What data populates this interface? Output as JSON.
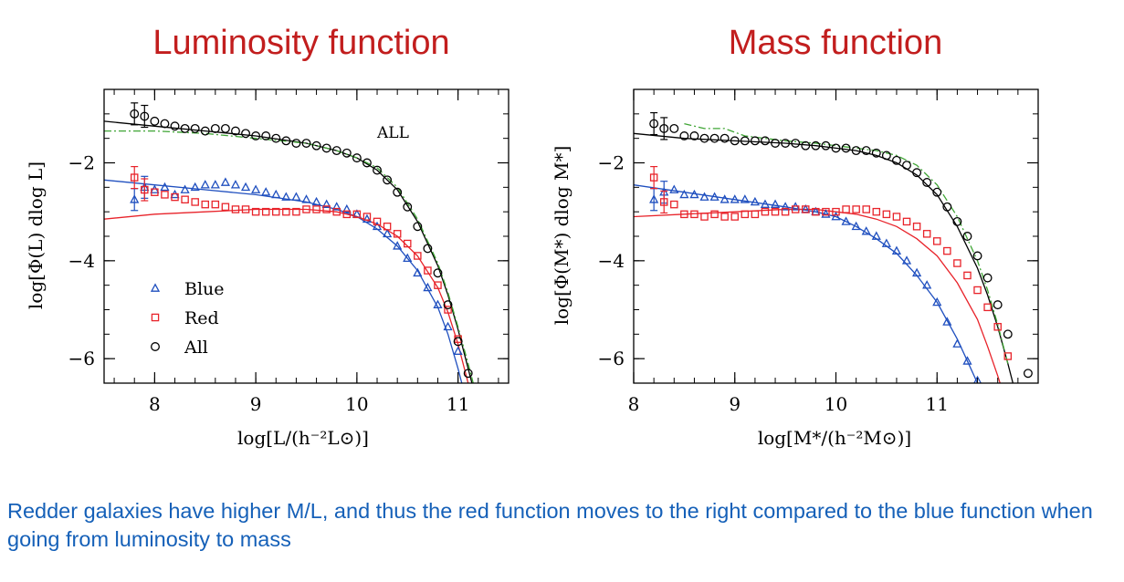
{
  "titles": {
    "left": "Luminosity function",
    "right": "Mass function"
  },
  "caption": "Redder galaxies have higher M/L, and thus the red function moves to the right compared to the blue function when going from luminosity to mass",
  "colors": {
    "title": "#c21e1e",
    "caption": "#1560b8",
    "blue": "#1f4fbf",
    "red": "#e8232a",
    "all": "#000000",
    "green": "#3fa535"
  },
  "chart_data": [
    {
      "type": "scatter",
      "title": "Luminosity function",
      "xlabel": "log[L/(h⁻²L⊙)]",
      "ylabel": "log[Φ(L) dlog L]",
      "annotation": "ALL",
      "xlim": [
        7.5,
        11.5
      ],
      "ylim": [
        -6.5,
        -0.5
      ],
      "xticks": [
        8,
        9,
        10,
        11
      ],
      "yticks": [
        -2,
        -4,
        -6
      ],
      "legend": {
        "placement": "bottom-left",
        "entries": [
          "Blue",
          "Red",
          "All"
        ]
      },
      "series": [
        {
          "name": "Blue",
          "marker": "triangle",
          "color": "#1f4fbf",
          "x": [
            7.8,
            7.9,
            8.0,
            8.1,
            8.2,
            8.3,
            8.4,
            8.5,
            8.6,
            8.7,
            8.8,
            8.9,
            9.0,
            9.1,
            9.2,
            9.3,
            9.4,
            9.5,
            9.6,
            9.7,
            9.8,
            9.9,
            10.0,
            10.1,
            10.2,
            10.3,
            10.4,
            10.5,
            10.6,
            10.7,
            10.8,
            10.9,
            11.0
          ],
          "y": [
            -2.75,
            -2.5,
            -2.55,
            -2.5,
            -2.65,
            -2.55,
            -2.5,
            -2.45,
            -2.45,
            -2.4,
            -2.45,
            -2.5,
            -2.55,
            -2.6,
            -2.65,
            -2.7,
            -2.7,
            -2.75,
            -2.8,
            -2.85,
            -2.9,
            -2.95,
            -3.05,
            -3.15,
            -3.3,
            -3.45,
            -3.7,
            -3.95,
            -4.25,
            -4.55,
            -4.9,
            -5.35,
            -5.85
          ]
        },
        {
          "name": "Red",
          "marker": "square",
          "color": "#e8232a",
          "x": [
            7.8,
            7.9,
            8.0,
            8.1,
            8.2,
            8.3,
            8.4,
            8.5,
            8.6,
            8.7,
            8.8,
            8.9,
            9.0,
            9.1,
            9.2,
            9.3,
            9.4,
            9.5,
            9.6,
            9.7,
            9.8,
            9.9,
            10.0,
            10.1,
            10.2,
            10.3,
            10.4,
            10.5,
            10.6,
            10.7,
            10.8,
            10.9,
            11.0
          ],
          "y": [
            -2.3,
            -2.55,
            -2.6,
            -2.65,
            -2.7,
            -2.75,
            -2.8,
            -2.85,
            -2.85,
            -2.9,
            -2.95,
            -2.95,
            -3.0,
            -3.0,
            -3.0,
            -3.0,
            -3.0,
            -2.95,
            -2.95,
            -2.95,
            -3.0,
            -3.05,
            -3.05,
            -3.1,
            -3.2,
            -3.3,
            -3.45,
            -3.65,
            -3.9,
            -4.2,
            -4.5,
            -5.0,
            -5.6
          ]
        },
        {
          "name": "All",
          "marker": "circle",
          "color": "#000000",
          "x": [
            7.8,
            7.9,
            8.0,
            8.1,
            8.2,
            8.3,
            8.4,
            8.5,
            8.6,
            8.7,
            8.8,
            8.9,
            9.0,
            9.1,
            9.2,
            9.3,
            9.4,
            9.5,
            9.6,
            9.7,
            9.8,
            9.9,
            10.0,
            10.1,
            10.2,
            10.3,
            10.4,
            10.5,
            10.6,
            10.7,
            10.8,
            10.9,
            11.0,
            11.1
          ],
          "y": [
            -1.0,
            -1.05,
            -1.15,
            -1.2,
            -1.25,
            -1.3,
            -1.3,
            -1.35,
            -1.3,
            -1.3,
            -1.35,
            -1.4,
            -1.45,
            -1.45,
            -1.5,
            -1.55,
            -1.6,
            -1.6,
            -1.65,
            -1.7,
            -1.75,
            -1.8,
            -1.9,
            -2.0,
            -2.15,
            -2.35,
            -2.6,
            -2.9,
            -3.3,
            -3.75,
            -4.25,
            -4.9,
            -5.65,
            -6.3
          ]
        }
      ],
      "fits": [
        {
          "color": "#1f4fbf",
          "x": [
            7.5,
            8.0,
            8.5,
            9.0,
            9.5,
            9.8,
            10.0,
            10.2,
            10.4,
            10.6,
            10.8,
            10.9,
            11.0,
            11.1
          ],
          "y": [
            -2.35,
            -2.45,
            -2.55,
            -2.65,
            -2.8,
            -2.95,
            -3.1,
            -3.35,
            -3.7,
            -4.2,
            -4.95,
            -5.5,
            -6.2,
            -7.0
          ]
        },
        {
          "color": "#e8232a",
          "x": [
            7.5,
            8.0,
            8.5,
            9.0,
            9.5,
            9.8,
            10.0,
            10.2,
            10.4,
            10.6,
            10.8,
            10.9,
            11.0,
            11.1
          ],
          "y": [
            -3.15,
            -3.05,
            -3.0,
            -2.95,
            -2.95,
            -3.0,
            -3.1,
            -3.25,
            -3.5,
            -3.9,
            -4.55,
            -5.05,
            -5.7,
            -6.5
          ]
        },
        {
          "color": "#000000",
          "x": [
            7.5,
            8.0,
            8.5,
            9.0,
            9.5,
            9.8,
            10.0,
            10.2,
            10.4,
            10.6,
            10.8,
            10.9,
            11.0,
            11.1,
            11.2
          ],
          "y": [
            -1.15,
            -1.25,
            -1.35,
            -1.45,
            -1.6,
            -1.75,
            -1.9,
            -2.15,
            -2.55,
            -3.2,
            -4.1,
            -4.7,
            -5.4,
            -6.2,
            -7.0
          ]
        },
        {
          "color": "#3fa535",
          "dashed": true,
          "x": [
            7.5,
            8.0,
            8.5,
            9.0,
            9.5,
            9.8,
            10.0,
            10.2,
            10.4,
            10.6,
            10.8,
            10.9,
            11.0,
            11.1,
            11.2
          ],
          "y": [
            -1.35,
            -1.35,
            -1.4,
            -1.5,
            -1.6,
            -1.75,
            -1.9,
            -2.1,
            -2.5,
            -3.15,
            -4.05,
            -4.65,
            -5.35,
            -6.1,
            -6.9
          ]
        }
      ]
    },
    {
      "type": "scatter",
      "title": "Mass function",
      "xlabel": "log[M*/(h⁻²M⊙)]",
      "ylabel": "log[Φ(M*) dlog M*]",
      "xlim": [
        8.0,
        12.0
      ],
      "ylim": [
        -6.5,
        -0.5
      ],
      "xticks": [
        8,
        9,
        10,
        11
      ],
      "yticks": [
        -2,
        -4,
        -6
      ],
      "series": [
        {
          "name": "Blue",
          "marker": "triangle",
          "color": "#1f4fbf",
          "x": [
            8.2,
            8.3,
            8.4,
            8.5,
            8.6,
            8.7,
            8.8,
            8.9,
            9.0,
            9.1,
            9.2,
            9.3,
            9.4,
            9.5,
            9.6,
            9.7,
            9.8,
            9.9,
            10.0,
            10.1,
            10.2,
            10.3,
            10.4,
            10.5,
            10.6,
            10.7,
            10.8,
            10.9,
            11.0,
            11.1,
            11.2,
            11.3,
            11.4,
            11.5
          ],
          "y": [
            -2.75,
            -2.6,
            -2.55,
            -2.65,
            -2.65,
            -2.7,
            -2.7,
            -2.75,
            -2.75,
            -2.75,
            -2.8,
            -2.85,
            -2.85,
            -2.9,
            -2.9,
            -2.95,
            -3.0,
            -3.05,
            -3.1,
            -3.2,
            -3.3,
            -3.4,
            -3.5,
            -3.65,
            -3.8,
            -4.0,
            -4.25,
            -4.5,
            -4.85,
            -5.25,
            -5.7,
            -6.05,
            -6.45,
            -6.9
          ]
        },
        {
          "name": "Red",
          "marker": "square",
          "color": "#e8232a",
          "x": [
            8.2,
            8.3,
            8.4,
            8.5,
            8.6,
            8.7,
            8.8,
            8.9,
            9.0,
            9.1,
            9.2,
            9.3,
            9.4,
            9.5,
            9.6,
            9.7,
            9.8,
            9.9,
            10.0,
            10.1,
            10.2,
            10.3,
            10.4,
            10.5,
            10.6,
            10.7,
            10.8,
            10.9,
            11.0,
            11.1,
            11.2,
            11.3,
            11.4,
            11.5,
            11.6,
            11.7
          ],
          "y": [
            -2.3,
            -2.8,
            -2.85,
            -3.05,
            -3.05,
            -3.1,
            -3.05,
            -3.1,
            -3.1,
            -3.05,
            -3.05,
            -3.0,
            -3.0,
            -3.0,
            -2.95,
            -2.95,
            -3.0,
            -3.0,
            -3.0,
            -2.95,
            -2.95,
            -2.95,
            -3.0,
            -3.05,
            -3.1,
            -3.2,
            -3.3,
            -3.45,
            -3.6,
            -3.8,
            -4.05,
            -4.3,
            -4.6,
            -4.95,
            -5.35,
            -5.95
          ]
        },
        {
          "name": "All",
          "marker": "circle",
          "color": "#000000",
          "x": [
            8.2,
            8.3,
            8.4,
            8.5,
            8.6,
            8.7,
            8.8,
            8.9,
            9.0,
            9.1,
            9.2,
            9.3,
            9.4,
            9.5,
            9.6,
            9.7,
            9.8,
            9.9,
            10.0,
            10.1,
            10.2,
            10.3,
            10.4,
            10.5,
            10.6,
            10.7,
            10.8,
            10.9,
            11.0,
            11.1,
            11.2,
            11.3,
            11.4,
            11.5,
            11.6,
            11.7,
            11.9
          ],
          "y": [
            -1.2,
            -1.3,
            -1.3,
            -1.45,
            -1.45,
            -1.5,
            -1.5,
            -1.5,
            -1.55,
            -1.55,
            -1.55,
            -1.55,
            -1.6,
            -1.6,
            -1.6,
            -1.65,
            -1.65,
            -1.65,
            -1.7,
            -1.7,
            -1.75,
            -1.75,
            -1.8,
            -1.85,
            -1.95,
            -2.05,
            -2.2,
            -2.4,
            -2.6,
            -2.9,
            -3.2,
            -3.5,
            -3.9,
            -4.35,
            -4.9,
            -5.5,
            -6.3
          ]
        }
      ],
      "fits": [
        {
          "color": "#1f4fbf",
          "x": [
            8.0,
            8.5,
            9.0,
            9.5,
            9.8,
            10.0,
            10.2,
            10.4,
            10.6,
            10.8,
            11.0,
            11.2,
            11.3,
            11.4,
            11.5
          ],
          "y": [
            -2.45,
            -2.6,
            -2.75,
            -2.9,
            -3.0,
            -3.1,
            -3.3,
            -3.55,
            -3.85,
            -4.3,
            -4.85,
            -5.6,
            -6.05,
            -6.5,
            -7.0
          ]
        },
        {
          "color": "#e8232a",
          "x": [
            8.0,
            8.5,
            9.0,
            9.5,
            9.8,
            10.0,
            10.2,
            10.4,
            10.6,
            10.8,
            11.0,
            11.2,
            11.4,
            11.5,
            11.6,
            11.7
          ],
          "y": [
            -3.1,
            -3.05,
            -3.0,
            -2.95,
            -2.95,
            -3.0,
            -3.05,
            -3.15,
            -3.3,
            -3.55,
            -3.9,
            -4.45,
            -5.2,
            -5.75,
            -6.35,
            -7.0
          ]
        },
        {
          "color": "#000000",
          "x": [
            8.0,
            8.5,
            9.0,
            9.5,
            9.8,
            10.0,
            10.2,
            10.4,
            10.6,
            10.8,
            11.0,
            11.2,
            11.4,
            11.5,
            11.6,
            11.7,
            11.8
          ],
          "y": [
            -1.4,
            -1.5,
            -1.55,
            -1.6,
            -1.65,
            -1.7,
            -1.75,
            -1.85,
            -2.0,
            -2.25,
            -2.65,
            -3.3,
            -4.15,
            -4.7,
            -5.35,
            -6.1,
            -6.9
          ]
        },
        {
          "color": "#3fa535",
          "dashed": true,
          "x": [
            8.5,
            8.7,
            8.9,
            9.1,
            9.3,
            9.5,
            9.8,
            10.0,
            10.2,
            10.4,
            10.6,
            10.8,
            11.0,
            11.2,
            11.4,
            11.5,
            11.6,
            11.7
          ],
          "y": [
            -1.2,
            -1.3,
            -1.3,
            -1.45,
            -1.5,
            -1.55,
            -1.6,
            -1.65,
            -1.7,
            -1.75,
            -1.85,
            -2.05,
            -2.45,
            -3.1,
            -4.0,
            -4.6,
            -5.3,
            -6.1
          ]
        }
      ]
    }
  ]
}
